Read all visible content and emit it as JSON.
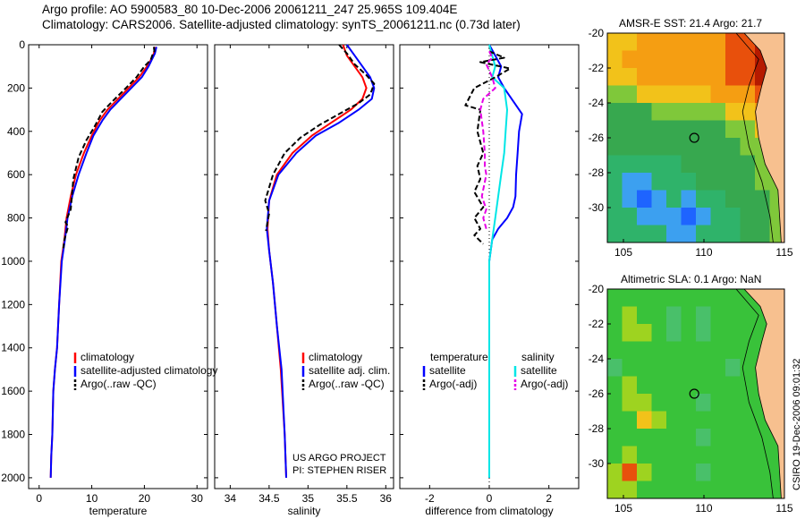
{
  "header": {
    "line1": "Argo profile: AO 5900583_80 10-Dec-2006 20061211_247 25.965S 109.404E",
    "line2": "Climatology: CARS2006. Satellite-adjusted climatology: synTS_20061211.nc (0.73d later)"
  },
  "credit": {
    "line1": "US ARGO PROJECT",
    "line2": "PI: STEPHEN RISER"
  },
  "stamp": "CSIRO 19-Dec-2006 09:01:32",
  "colors": {
    "clim": "#ff0000",
    "sat": "#0000ff",
    "argo": "#000000",
    "sal_sat": "#00e6e6",
    "sal_argo": "#e600e6"
  },
  "chart_data": [
    {
      "type": "line",
      "xlabel": "temperature",
      "ylabel": "",
      "xlim": [
        -2,
        32
      ],
      "ylim": [
        2050,
        0
      ],
      "yticks": [
        0,
        200,
        400,
        600,
        800,
        1000,
        1200,
        1400,
        1600,
        1800,
        2000
      ],
      "xticks": [
        0,
        10,
        20,
        30
      ],
      "legend": [
        "climatology",
        "satellite-adjusted climatology",
        "Argo(..raw -QC)"
      ],
      "legend_position": "lower-right",
      "series": [
        {
          "name": "climatology",
          "color": "#ff0000",
          "dash": false,
          "x": [
            22,
            21.8,
            21.5,
            20.5,
            19,
            17,
            15,
            13,
            11.5,
            10,
            8.5,
            7,
            6,
            5.2,
            4.8,
            4.2,
            3.8,
            3.4,
            3,
            2.7,
            2.5,
            2.3,
            2.2
          ],
          "y": [
            10,
            40,
            60,
            100,
            150,
            200,
            250,
            300,
            350,
            420,
            500,
            600,
            700,
            800,
            900,
            1000,
            1200,
            1400,
            1500,
            1600,
            1800,
            1900,
            2000
          ]
        },
        {
          "name": "satellite-adjusted climatology",
          "color": "#0000ff",
          "dash": false,
          "x": [
            22.3,
            22,
            21.6,
            20.8,
            19.5,
            17.5,
            15.5,
            13.5,
            12,
            10.3,
            9,
            7.5,
            6.3,
            5.4,
            4.9,
            4.3,
            3.8,
            3.4,
            3,
            2.7,
            2.5,
            2.3,
            2.2
          ],
          "y": [
            10,
            40,
            60,
            100,
            150,
            200,
            250,
            300,
            350,
            420,
            500,
            600,
            700,
            800,
            900,
            1000,
            1200,
            1400,
            1500,
            1600,
            1800,
            1900,
            2000
          ]
        },
        {
          "name": "Argo(..raw -QC)",
          "color": "#000000",
          "dash": true,
          "x": [
            21.8,
            21.9,
            21.5,
            21.2,
            20,
            18.5,
            16.5,
            14,
            12,
            10.5,
            9,
            7.5,
            6.5,
            6,
            5,
            5.5,
            4.8,
            4.6
          ],
          "y": [
            10,
            30,
            50,
            70,
            100,
            150,
            200,
            260,
            310,
            380,
            440,
            520,
            620,
            760,
            820,
            840,
            900,
            940
          ]
        }
      ]
    },
    {
      "type": "line",
      "xlabel": "salinity",
      "ylabel": "",
      "xlim": [
        33.8,
        36.1
      ],
      "ylim": [
        2050,
        0
      ],
      "xticks": [
        34,
        34.5,
        35,
        35.5,
        36
      ],
      "legend": [
        "climatology",
        "satellite adj. clim.",
        "Argo(..raw -QC)"
      ],
      "legend_position": "lower-right",
      "series": [
        {
          "name": "climatology",
          "color": "#ff0000",
          "dash": false,
          "x": [
            35.45,
            35.5,
            35.6,
            35.7,
            35.75,
            35.7,
            35.55,
            35.3,
            35.05,
            34.8,
            34.6,
            34.5,
            34.48,
            34.5,
            34.55,
            34.6,
            34.65,
            34.7,
            34.72
          ],
          "y": [
            0,
            50,
            100,
            150,
            200,
            250,
            300,
            360,
            420,
            500,
            600,
            720,
            850,
            950,
            1100,
            1300,
            1500,
            1800,
            2000
          ]
        },
        {
          "name": "satellite adj. clim.",
          "color": "#0000ff",
          "dash": false,
          "x": [
            35.5,
            35.6,
            35.7,
            35.8,
            35.85,
            35.82,
            35.65,
            35.4,
            35.1,
            34.85,
            34.62,
            34.5,
            34.47,
            34.5,
            34.55,
            34.6,
            34.66,
            34.7,
            34.72
          ],
          "y": [
            0,
            50,
            100,
            150,
            200,
            250,
            300,
            360,
            420,
            500,
            600,
            720,
            850,
            950,
            1100,
            1300,
            1500,
            1800,
            2000
          ]
        },
        {
          "name": "Argo(..raw -QC)",
          "color": "#000000",
          "dash": true,
          "x": [
            35.4,
            35.5,
            35.6,
            35.75,
            35.85,
            35.8,
            35.65,
            35.4,
            35.15,
            34.9,
            34.7,
            34.55,
            34.45,
            34.5,
            34.48,
            34.46
          ],
          "y": [
            0,
            40,
            90,
            140,
            180,
            230,
            270,
            320,
            370,
            430,
            500,
            600,
            720,
            780,
            820,
            860
          ]
        }
      ]
    },
    {
      "type": "line",
      "xlabel": "difference from climatology",
      "ylabel": "",
      "xlim": [
        -3,
        3
      ],
      "ylim": [
        2050,
        0
      ],
      "xticks": [
        -2,
        0,
        2
      ],
      "legend_temperature": [
        "temperature",
        "satellite",
        "Argo(-adj)"
      ],
      "legend_salinity": [
        "salinity",
        "satellite",
        "Argo(-adj)"
      ],
      "legend_position": "lower-right",
      "series": [
        {
          "name": "satellite",
          "color": "#0000ff",
          "dash": false,
          "x": [
            0,
            0.2,
            0.4,
            0.3,
            0.5,
            1.1,
            1.0,
            0.95,
            0.9,
            0.88,
            0.8,
            0.6,
            0.3,
            0.1,
            0,
            0,
            0
          ],
          "y": [
            0,
            50,
            100,
            150,
            200,
            320,
            400,
            500,
            600,
            700,
            750,
            800,
            850,
            900,
            1000,
            1500,
            2000
          ]
        },
        {
          "name": "satellite",
          "color": "#00e6e6",
          "dash": false,
          "x": [
            0,
            0.1,
            0.2,
            0.1,
            0.5,
            0.6,
            0.55,
            0.5,
            0.4,
            0.3,
            0.2,
            0.1,
            0,
            0
          ],
          "y": [
            0,
            50,
            100,
            150,
            200,
            300,
            400,
            500,
            600,
            700,
            800,
            900,
            1000,
            2000
          ]
        },
        {
          "name": "Argo(-adj)",
          "color": "#000000",
          "dash": true,
          "x": [
            0,
            0.5,
            -0.3,
            0.7,
            0.2,
            -0.5,
            -0.8,
            -0.3,
            -0.4,
            -0.2,
            -0.4,
            -0.3,
            -0.5,
            -0.2,
            -0.5,
            -0.3,
            -0.5,
            -0.2
          ],
          "y": [
            30,
            60,
            80,
            110,
            150,
            200,
            280,
            300,
            400,
            500,
            560,
            620,
            680,
            750,
            800,
            850,
            880,
            920
          ]
        },
        {
          "name": "Argo(-adj)",
          "color": "#e600e6",
          "dash": true,
          "x": [
            0,
            0.1,
            -0.1,
            0.1,
            0.2,
            -0.2,
            -0.3,
            -0.2,
            -0.15,
            -0.15,
            -0.1,
            -0.25,
            -0.1,
            -0.2,
            -0.1
          ],
          "y": [
            30,
            60,
            90,
            150,
            200,
            250,
            300,
            400,
            500,
            560,
            600,
            700,
            760,
            800,
            850
          ]
        }
      ]
    },
    {
      "type": "heatmap",
      "title": "AMSR-E SST: 21.4 Argo: 21.7",
      "xlim": [
        104,
        115
      ],
      "ylim": [
        -32,
        -20
      ],
      "xticks": [
        105,
        110,
        115
      ],
      "yticks": [
        -20,
        -22,
        -24,
        -26,
        -28,
        -30
      ],
      "marker": [
        109.4,
        -26
      ],
      "grid_note": "rows from north (-20) to south (-32), cols from 104 to 115",
      "values": [
        [
          5,
          5,
          6,
          6,
          6,
          6,
          6,
          6,
          7,
          7,
          8,
          9
        ],
        [
          5,
          6,
          6,
          6,
          6,
          6,
          6,
          6,
          7,
          7,
          8,
          9
        ],
        [
          5,
          5,
          6,
          6,
          6,
          6,
          6,
          6,
          7,
          7,
          8,
          8
        ],
        [
          4,
          4,
          5,
          5,
          5,
          5,
          5,
          6,
          6,
          6,
          7,
          8
        ],
        [
          3,
          3,
          3,
          4,
          4,
          4,
          4,
          4,
          5,
          5,
          6,
          7
        ],
        [
          3,
          3,
          3,
          3,
          3,
          3,
          3,
          3,
          4,
          4,
          5,
          6
        ],
        [
          3,
          3,
          3,
          3,
          3,
          3,
          3,
          3,
          3,
          4,
          4,
          5
        ],
        [
          2,
          2,
          2,
          2,
          2,
          3,
          3,
          3,
          3,
          3,
          4,
          5
        ],
        [
          2,
          1,
          1,
          2,
          2,
          2,
          3,
          3,
          3,
          3,
          4,
          4
        ],
        [
          2,
          1,
          0,
          1,
          2,
          1,
          2,
          2,
          3,
          3,
          3,
          4
        ],
        [
          2,
          2,
          1,
          1,
          1,
          0,
          1,
          2,
          2,
          3,
          3,
          4
        ],
        [
          2,
          2,
          2,
          2,
          1,
          1,
          2,
          2,
          2,
          3,
          3,
          4
        ]
      ]
    },
    {
      "type": "heatmap",
      "title": "Altimetric SLA: 0.1 Argo: NaN",
      "xlim": [
        104,
        115
      ],
      "ylim": [
        -32,
        -20
      ],
      "xticks": [
        105,
        110,
        115
      ],
      "yticks": [
        -20,
        -22,
        -24,
        -26,
        -28,
        -30
      ],
      "marker": [
        109.4,
        -26
      ],
      "grid_note": "rows from north (-20) to south (-32), cols from 104 to 115",
      "values": [
        [
          4,
          4,
          4,
          4,
          4,
          4,
          4,
          4,
          4,
          4,
          4,
          4
        ],
        [
          4,
          5,
          4,
          4,
          3,
          4,
          3,
          4,
          4,
          4,
          4,
          4
        ],
        [
          4,
          5,
          5,
          4,
          3,
          4,
          3,
          4,
          4,
          4,
          4,
          4
        ],
        [
          4,
          4,
          4,
          4,
          4,
          4,
          4,
          4,
          4,
          4,
          4,
          4
        ],
        [
          3,
          4,
          4,
          4,
          4,
          4,
          4,
          4,
          3,
          4,
          4,
          4
        ],
        [
          4,
          5,
          4,
          4,
          4,
          4,
          4,
          4,
          4,
          4,
          4,
          4
        ],
        [
          4,
          5,
          5,
          4,
          4,
          4,
          3,
          4,
          4,
          4,
          4,
          4
        ],
        [
          4,
          4,
          6,
          5,
          4,
          4,
          4,
          4,
          4,
          4,
          4,
          4
        ],
        [
          4,
          4,
          4,
          4,
          4,
          4,
          3,
          4,
          4,
          4,
          4,
          4
        ],
        [
          4,
          5,
          4,
          4,
          4,
          4,
          4,
          4,
          4,
          4,
          4,
          4
        ],
        [
          5,
          7,
          5,
          4,
          4,
          4,
          3,
          4,
          4,
          4,
          4,
          4
        ],
        [
          5,
          5,
          4,
          4,
          4,
          4,
          4,
          4,
          4,
          4,
          4,
          4
        ]
      ]
    }
  ]
}
